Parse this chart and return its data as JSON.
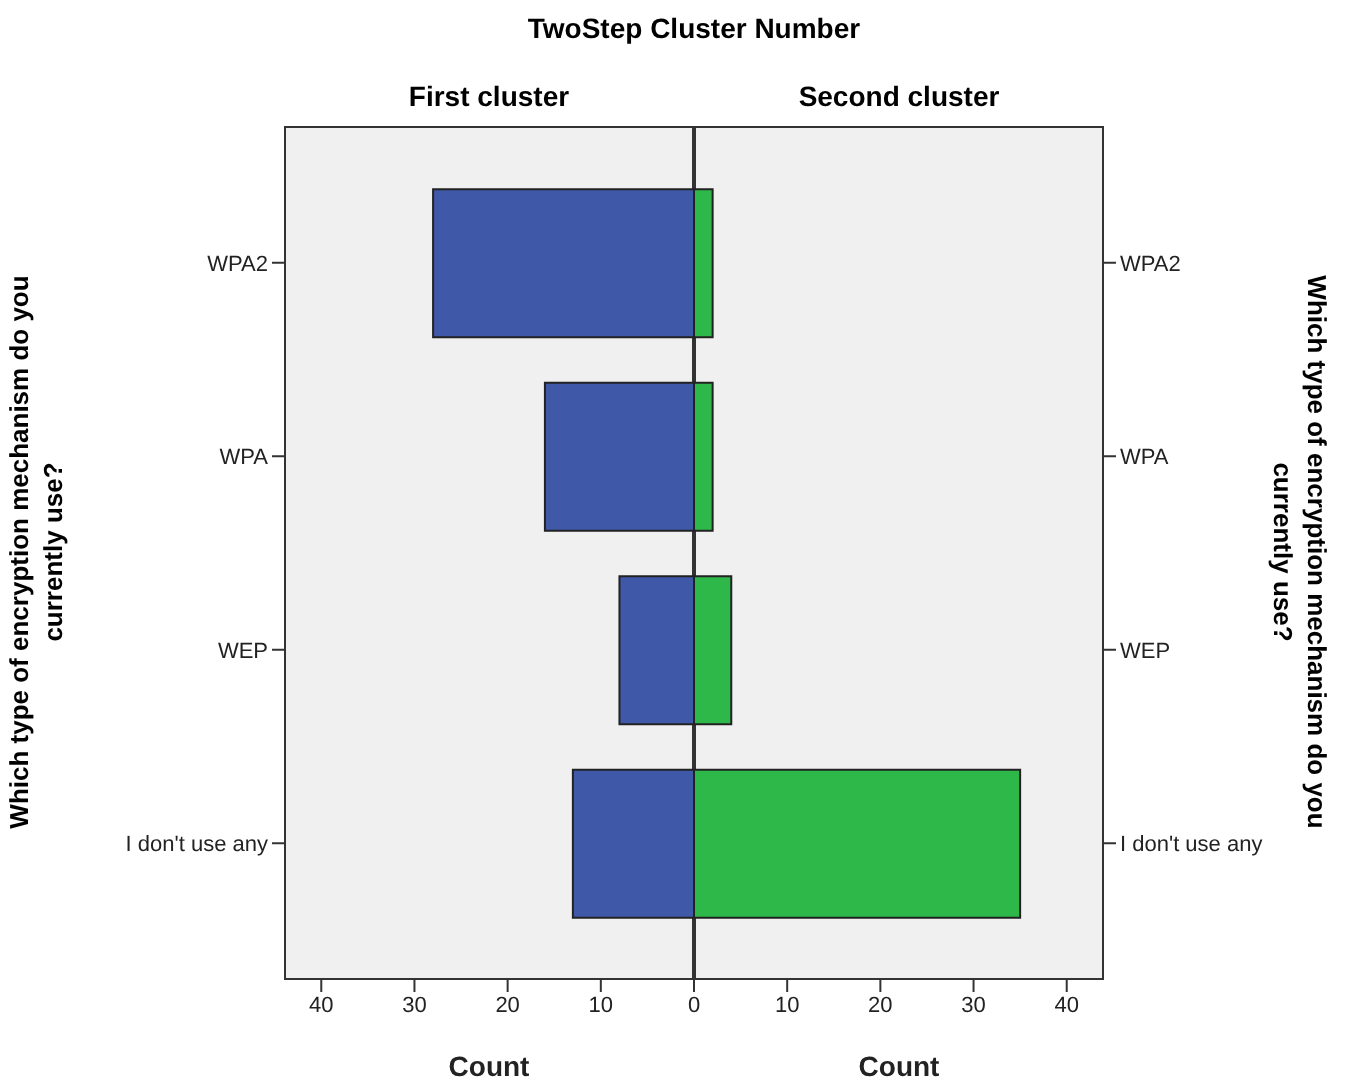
{
  "chart_data": [
    {
      "type": "bar",
      "orientation": "horizontal",
      "title": "TwoStep Cluster Number",
      "subtitle": "First cluster",
      "xlabel": "Count",
      "ylabel": "Which type of encryption mechanism do you currently use?",
      "categories": [
        "WPA2",
        "WPA",
        "WEP",
        "I don't use any"
      ],
      "values": [
        28,
        16,
        8,
        13
      ],
      "color": "#3f58a8",
      "xlim": [
        44,
        0
      ],
      "xticks": [
        40,
        30,
        20,
        10,
        {
          "value": 0,
          "label": null
        }
      ]
    },
    {
      "type": "bar",
      "orientation": "horizontal",
      "subtitle": "Second cluster",
      "xlabel": "Count",
      "ylabel": "Which type of encryption mechanism do you currently use?",
      "categories": [
        "WPA2",
        "WPA",
        "WEP",
        "I don't use any"
      ],
      "values": [
        2,
        2,
        4,
        35
      ],
      "color": "#2fb84a",
      "xlim": [
        0,
        44
      ],
      "xticks": [
        0,
        10,
        20,
        30,
        40
      ]
    }
  ]
}
